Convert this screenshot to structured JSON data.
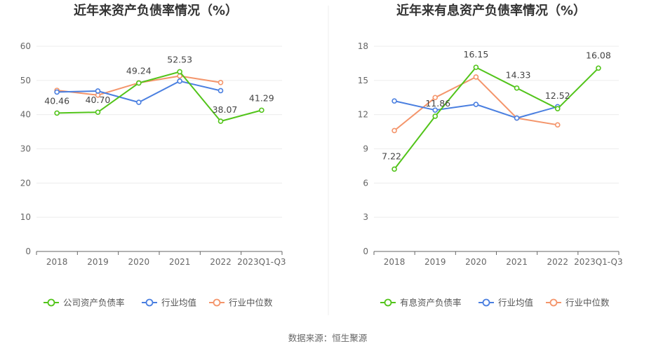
{
  "chart_data": [
    {
      "type": "line",
      "title": "近年来资产负债率情况（%）",
      "categories": [
        "2018",
        "2019",
        "2020",
        "2021",
        "2022",
        "2023Q1-Q3"
      ],
      "ylim": [
        0,
        60
      ],
      "yticks": [
        "0",
        "10",
        "20",
        "30",
        "40",
        "50",
        "60"
      ],
      "grid": true,
      "legend_position": "bottom",
      "series": [
        {
          "name": "公司资产负债率",
          "color": "#52c41a",
          "values": [
            40.46,
            40.7,
            49.24,
            52.53,
            38.07,
            41.29
          ],
          "labels": [
            "40.46",
            "40.70",
            "49.24",
            "52.53",
            "38.07",
            "41.29"
          ]
        },
        {
          "name": "行业均值",
          "color": "#4a7fe0",
          "values": [
            46.6,
            46.9,
            43.6,
            49.8,
            47.0,
            null
          ]
        },
        {
          "name": "行业中位数",
          "color": "#f4956b",
          "values": [
            47.1,
            45.7,
            49.3,
            51.3,
            49.4,
            null
          ]
        }
      ]
    },
    {
      "type": "line",
      "title": "近年来有息资产负债率情况（%）",
      "categories": [
        "2018",
        "2019",
        "2020",
        "2021",
        "2022",
        "2023Q1-Q3"
      ],
      "ylim": [
        0,
        18
      ],
      "yticks": [
        "0",
        "3",
        "6",
        "9",
        "12",
        "15",
        "18"
      ],
      "grid": true,
      "legend_position": "bottom",
      "series": [
        {
          "name": "有息资产负债率",
          "color": "#52c41a",
          "values": [
            7.22,
            11.86,
            16.15,
            14.33,
            12.52,
            16.08
          ],
          "labels": [
            "7.22",
            "11.86",
            "16.15",
            "14.33",
            "12.52",
            "16.08"
          ]
        },
        {
          "name": "行业均值",
          "color": "#4a7fe0",
          "values": [
            13.2,
            12.4,
            12.9,
            11.7,
            12.7,
            null
          ]
        },
        {
          "name": "行业中位数",
          "color": "#f4956b",
          "values": [
            10.6,
            13.5,
            15.3,
            11.7,
            11.1,
            null
          ]
        }
      ]
    }
  ],
  "source_text": "数据来源：恒生聚源"
}
